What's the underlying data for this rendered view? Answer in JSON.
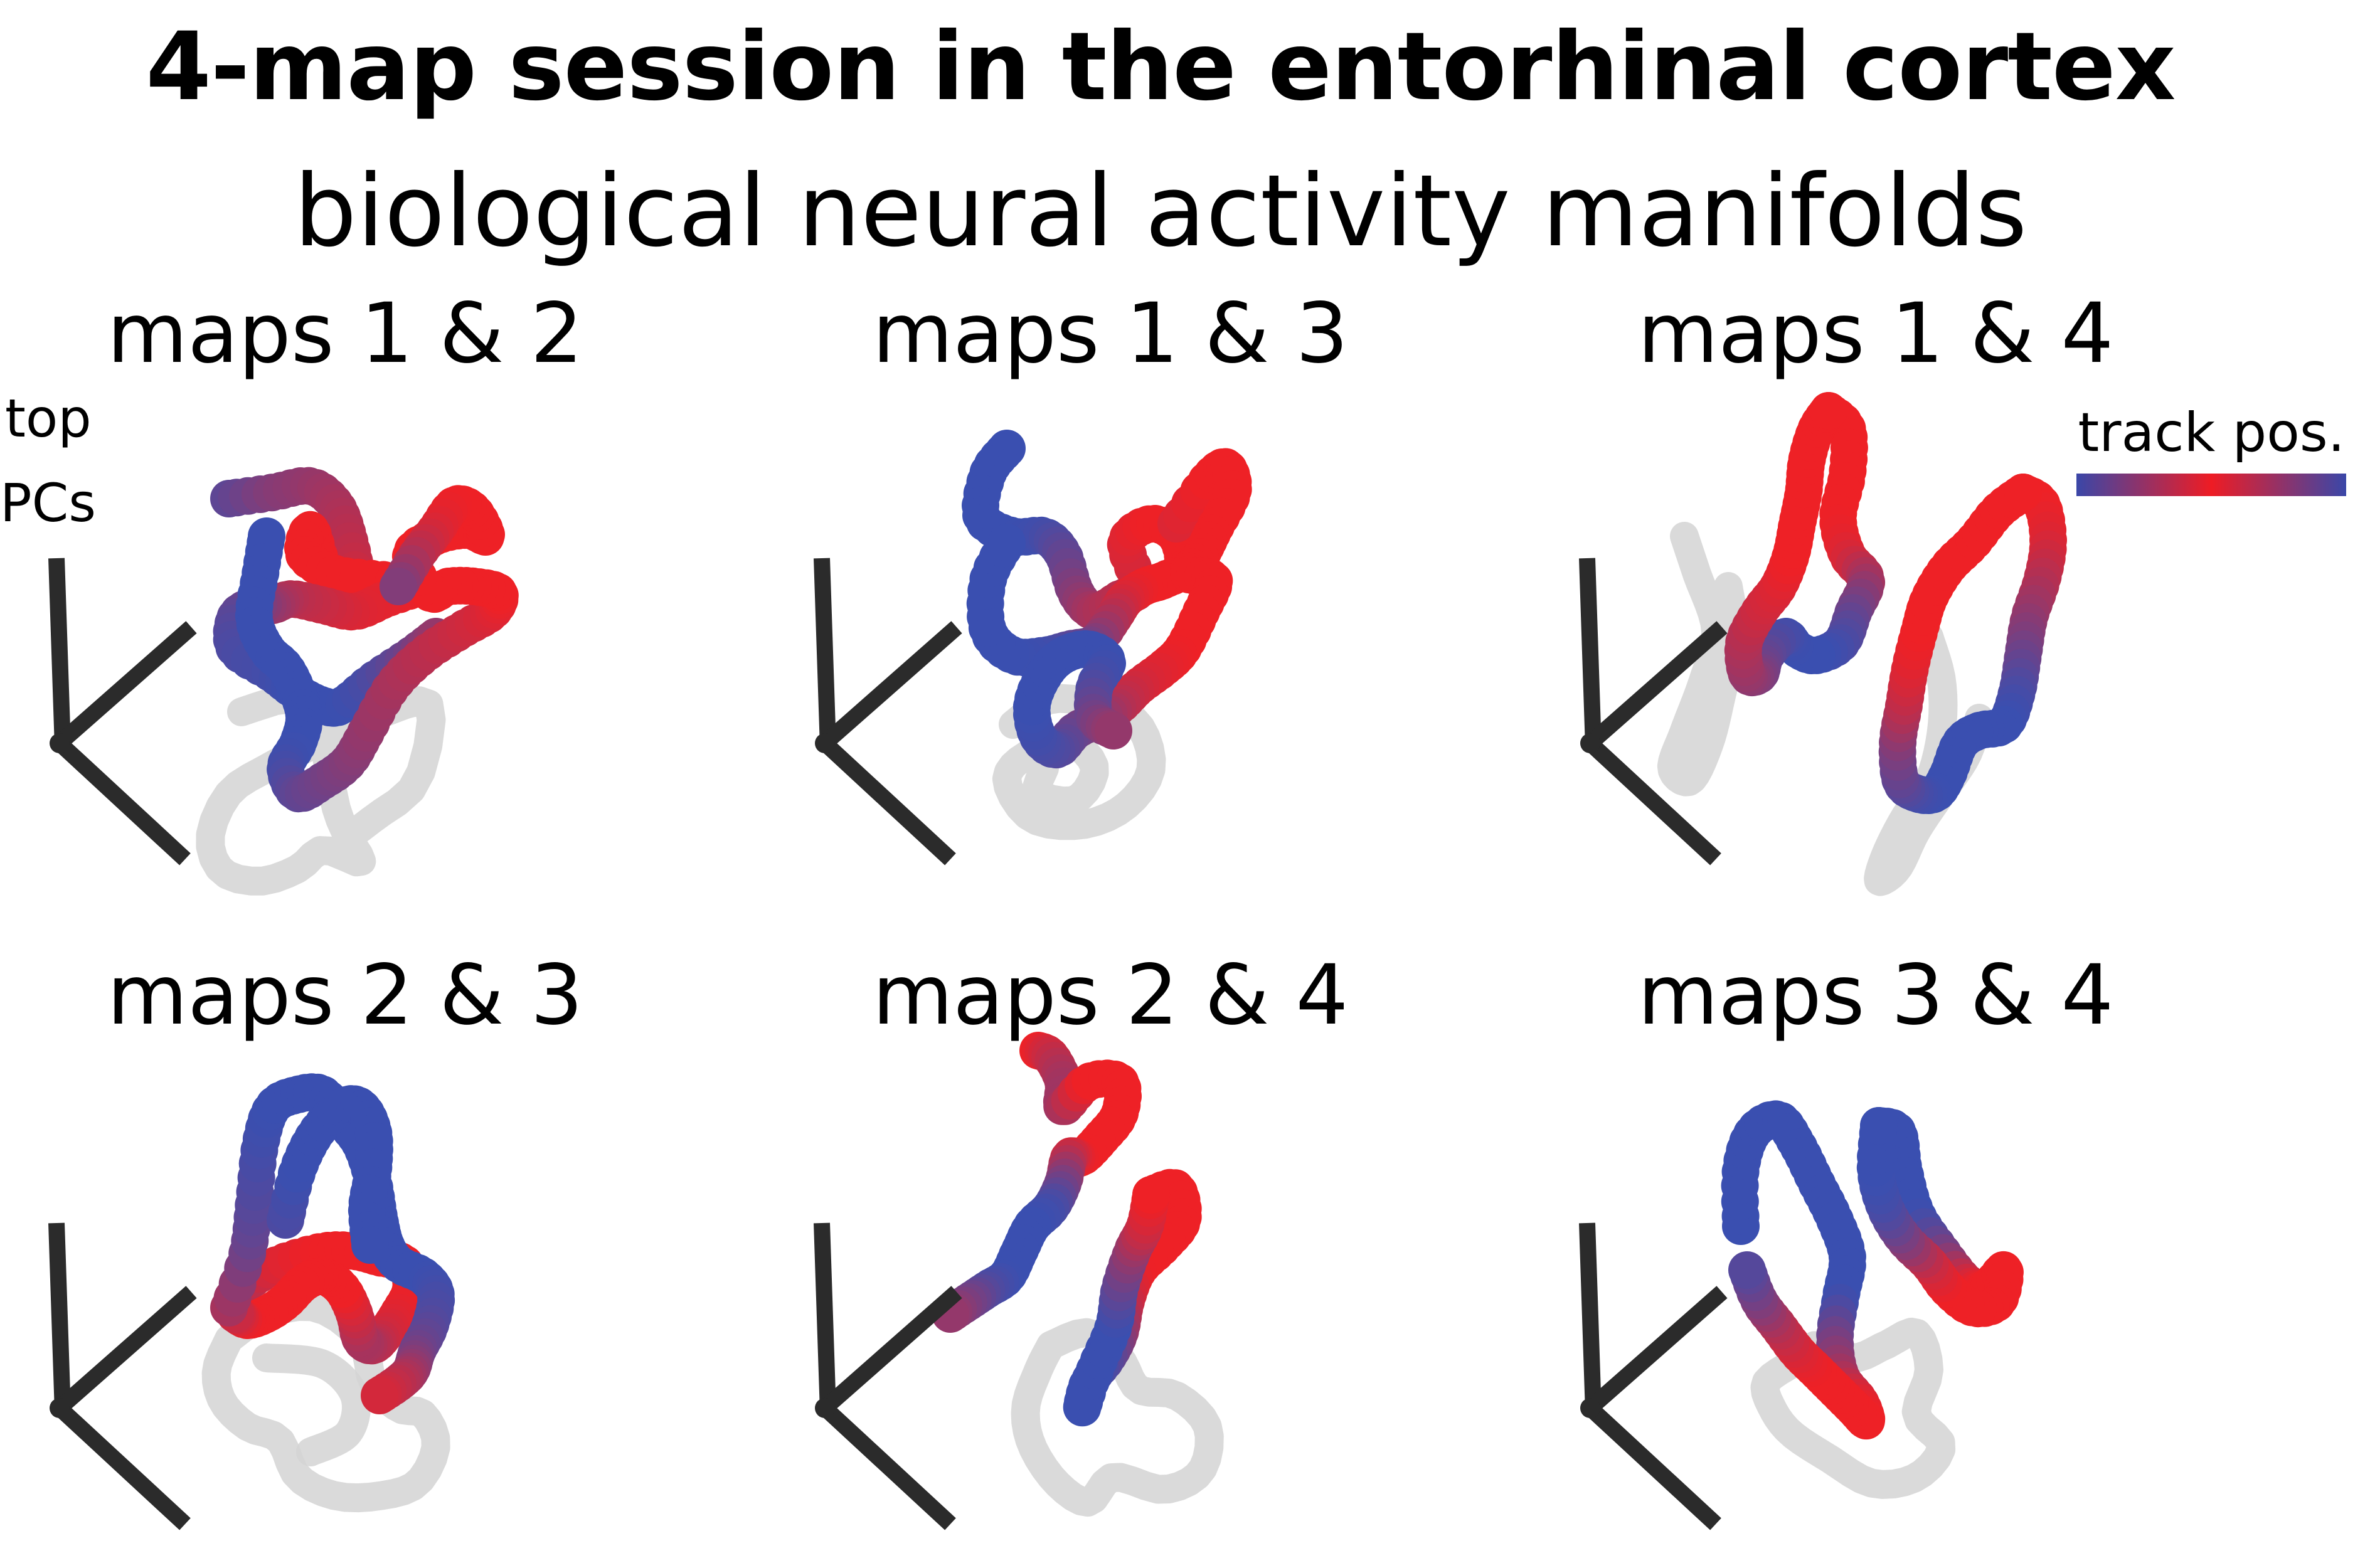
{
  "title": "4-map session in the entorhinal cortex",
  "subtitle": "biological neural activity manifolds",
  "axes_label_line1": "top",
  "axes_label_line2": "PCs",
  "legend": {
    "label": "track pos.",
    "gradient": [
      "#3a47a8",
      "#ee1c24",
      "#3a47a8"
    ]
  },
  "colors": {
    "blue": "#3a4fb0",
    "red": "#ee2126",
    "shadow": "#d4d4d4",
    "axes": "#2b2b2b"
  },
  "panels": [
    {
      "label": "maps 1 & 2"
    },
    {
      "label": "maps 1 & 3"
    },
    {
      "label": "maps 1 & 4"
    },
    {
      "label": "maps 2 & 3"
    },
    {
      "label": "maps 2 & 4"
    },
    {
      "label": "maps 3 & 4"
    }
  ]
}
